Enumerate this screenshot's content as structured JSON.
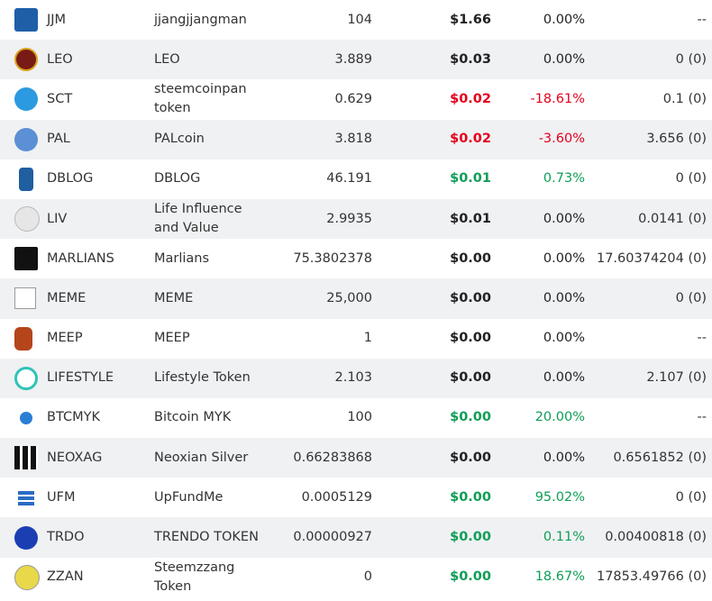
{
  "table": {
    "rows": [
      {
        "symbol": "JJM",
        "name": "jjangjjangman",
        "balance": "104",
        "price": "$1.66",
        "change": "0.00%",
        "staked": "--",
        "color": "#222222"
      },
      {
        "symbol": "LEO",
        "name": "LEO",
        "balance": "3.889",
        "price": "$0.03",
        "change": "0.00%",
        "staked": "0 (0)",
        "color": "#222222"
      },
      {
        "symbol": "SCT",
        "name": "steemcoinpan token",
        "balance": "0.629",
        "price": "$0.02",
        "change": "-18.61%",
        "staked": "0.1 (0)",
        "color": "#e3001b"
      },
      {
        "symbol": "PAL",
        "name": "PALcoin",
        "balance": "3.818",
        "price": "$0.02",
        "change": "-3.60%",
        "staked": "3.656 (0)",
        "color": "#e3001b"
      },
      {
        "symbol": "DBLOG",
        "name": "DBLOG",
        "balance": "46.191",
        "price": "$0.01",
        "change": "0.73%",
        "staked": "0 (0)",
        "color": "#0f9d58"
      },
      {
        "symbol": "LIV",
        "name": "Life Influence and Value",
        "balance": "2.9935",
        "price": "$0.01",
        "change": "0.00%",
        "staked": "0.0141 (0)",
        "color": "#222222"
      },
      {
        "symbol": "MARLIANS",
        "name": "Marlians",
        "balance": "75.3802378",
        "price": "$0.00",
        "change": "0.00%",
        "staked": "17.60374204 (0)",
        "color": "#222222"
      },
      {
        "symbol": "MEME",
        "name": "MEME",
        "balance": "25,000",
        "price": "$0.00",
        "change": "0.00%",
        "staked": "0 (0)",
        "color": "#222222"
      },
      {
        "symbol": "MEEP",
        "name": "MEEP",
        "balance": "1",
        "price": "$0.00",
        "change": "0.00%",
        "staked": "--",
        "color": "#222222"
      },
      {
        "symbol": "LIFESTYLE",
        "name": "Lifestyle Token",
        "balance": "2.103",
        "price": "$0.00",
        "change": "0.00%",
        "staked": "2.107 (0)",
        "color": "#222222"
      },
      {
        "symbol": "BTCMYK",
        "name": "Bitcoin MYK",
        "balance": "100",
        "price": "$0.00",
        "change": "20.00%",
        "staked": "--",
        "color": "#0f9d58"
      },
      {
        "symbol": "NEOXAG",
        "name": "Neoxian Silver",
        "balance": "0.66283868",
        "price": "$0.00",
        "change": "0.00%",
        "staked": "0.6561852 (0)",
        "color": "#222222"
      },
      {
        "symbol": "UFM",
        "name": "UpFundMe",
        "balance": "0.0005129",
        "price": "$0.00",
        "change": "95.02%",
        "staked": "0 (0)",
        "color": "#0f9d58"
      },
      {
        "symbol": "TRDO",
        "name": "TRENDO TOKEN",
        "balance": "0.00000927",
        "price": "$0.00",
        "change": "0.11%",
        "staked": "0.00400818 (0)",
        "color": "#0f9d58"
      },
      {
        "symbol": "ZZAN",
        "name": "Steemzzang Token",
        "balance": "0",
        "price": "$0.00",
        "change": "18.67%",
        "staked": "17853.49766 (0)",
        "color": "#0f9d58"
      }
    ]
  }
}
